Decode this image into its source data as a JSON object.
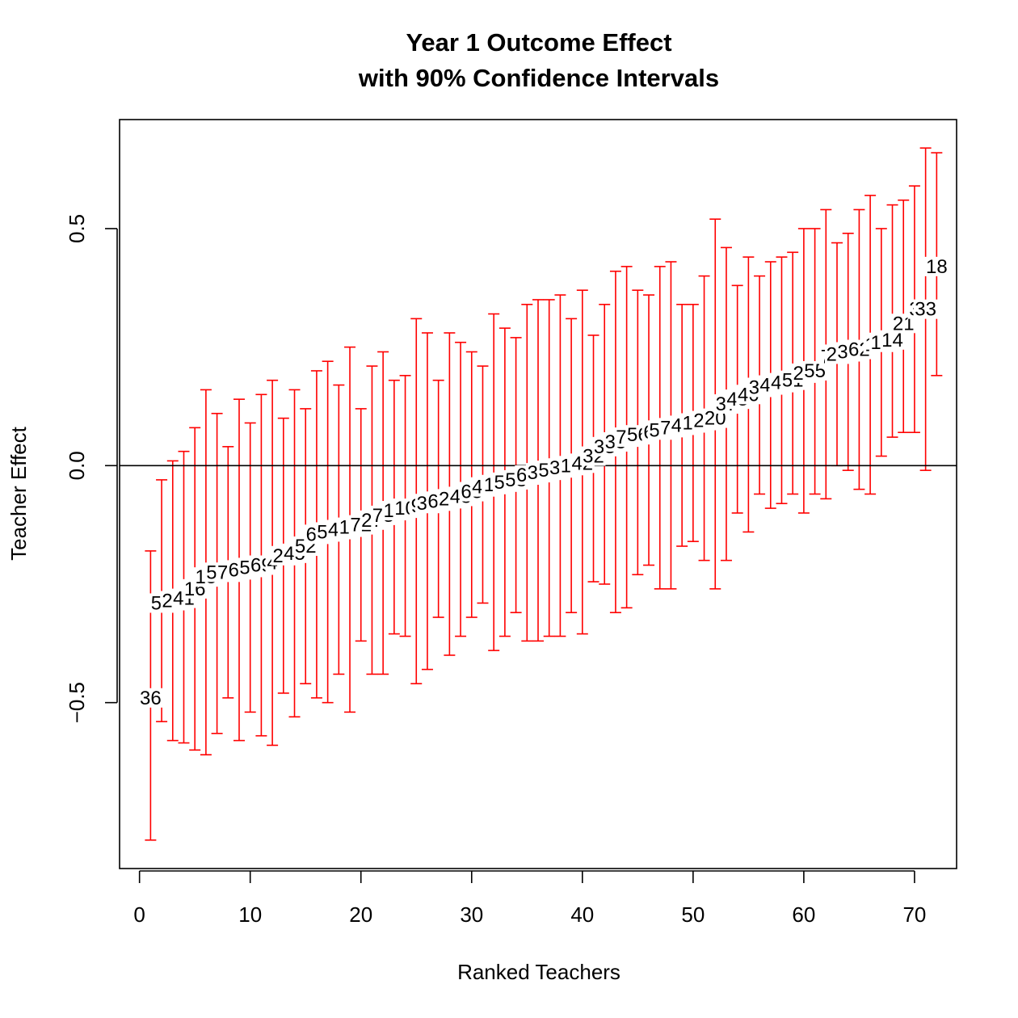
{
  "chart_data": {
    "type": "errorbar",
    "title": "Year 1 Outcome Effect",
    "subtitle": "with 90% Confidence Intervals",
    "xlabel": "Ranked Teachers",
    "ylabel": "Teacher Effect",
    "xlim": [
      -1.8,
      73.8
    ],
    "ylim": [
      -0.85,
      0.73
    ],
    "x_ticks": [
      0,
      10,
      20,
      30,
      40,
      50,
      60,
      70
    ],
    "y_ticks": [
      -0.5,
      0.0,
      0.5
    ],
    "y_tick_labels": [
      "−0.5",
      "0.0",
      "0.5"
    ],
    "reference_line": 0,
    "bar_color": "#ff0000",
    "points": [
      {
        "rank": 1,
        "id": "36",
        "estimate": -0.49,
        "lower": -0.79,
        "upper": -0.18
      },
      {
        "rank": 2,
        "id": "57",
        "estimate": -0.29,
        "lower": -0.54,
        "upper": -0.03
      },
      {
        "rank": 3,
        "id": "24",
        "estimate": -0.285,
        "lower": -0.58,
        "upper": 0.01
      },
      {
        "rank": 4,
        "id": "41",
        "estimate": -0.28,
        "lower": -0.585,
        "upper": 0.03
      },
      {
        "rank": 5,
        "id": "16",
        "estimate": -0.26,
        "lower": -0.6,
        "upper": 0.08
      },
      {
        "rank": 6,
        "id": "15",
        "estimate": -0.235,
        "lower": -0.61,
        "upper": 0.16
      },
      {
        "rank": 7,
        "id": "57",
        "estimate": -0.225,
        "lower": -0.565,
        "upper": 0.11
      },
      {
        "rank": 8,
        "id": "76",
        "estimate": -0.225,
        "lower": -0.49,
        "upper": 0.04
      },
      {
        "rank": 9,
        "id": "60",
        "estimate": -0.22,
        "lower": -0.58,
        "upper": 0.14
      },
      {
        "rank": 10,
        "id": "54",
        "estimate": -0.215,
        "lower": -0.52,
        "upper": 0.09
      },
      {
        "rank": 11,
        "id": "69",
        "estimate": -0.21,
        "lower": -0.57,
        "upper": 0.15
      },
      {
        "rank": 12,
        "id": "4",
        "estimate": -0.205,
        "lower": -0.59,
        "upper": 0.18
      },
      {
        "rank": 13,
        "id": "20",
        "estimate": -0.19,
        "lower": -0.48,
        "upper": 0.1
      },
      {
        "rank": 14,
        "id": "45",
        "estimate": -0.185,
        "lower": -0.53,
        "upper": 0.16
      },
      {
        "rank": 15,
        "id": "52",
        "estimate": -0.17,
        "lower": -0.46,
        "upper": 0.12
      },
      {
        "rank": 16,
        "id": "65",
        "estimate": -0.145,
        "lower": -0.49,
        "upper": 0.2
      },
      {
        "rank": 17,
        "id": "53",
        "estimate": -0.14,
        "lower": -0.5,
        "upper": 0.22
      },
      {
        "rank": 18,
        "id": "47",
        "estimate": -0.135,
        "lower": -0.44,
        "upper": 0.17
      },
      {
        "rank": 19,
        "id": "12",
        "estimate": -0.13,
        "lower": -0.52,
        "upper": 0.25
      },
      {
        "rank": 20,
        "id": "72",
        "estimate": -0.125,
        "lower": -0.37,
        "upper": 0.12
      },
      {
        "rank": 21,
        "id": "27",
        "estimate": -0.115,
        "lower": -0.44,
        "upper": 0.21
      },
      {
        "rank": 22,
        "id": "73",
        "estimate": -0.105,
        "lower": -0.44,
        "upper": 0.24
      },
      {
        "rank": 23,
        "id": "13",
        "estimate": -0.095,
        "lower": -0.355,
        "upper": 0.18
      },
      {
        "rank": 24,
        "id": "10",
        "estimate": -0.09,
        "lower": -0.36,
        "upper": 0.19
      },
      {
        "rank": 25,
        "id": "9",
        "estimate": -0.085,
        "lower": -0.46,
        "upper": 0.31
      },
      {
        "rank": 26,
        "id": "37",
        "estimate": -0.08,
        "lower": -0.43,
        "upper": 0.28
      },
      {
        "rank": 27,
        "id": "62",
        "estimate": -0.075,
        "lower": -0.32,
        "upper": 0.18
      },
      {
        "rank": 28,
        "id": "29",
        "estimate": -0.07,
        "lower": -0.4,
        "upper": 0.28
      },
      {
        "rank": 29,
        "id": "48",
        "estimate": -0.065,
        "lower": -0.36,
        "upper": 0.26
      },
      {
        "rank": 30,
        "id": "63",
        "estimate": -0.055,
        "lower": -0.32,
        "upper": 0.24
      },
      {
        "rank": 31,
        "id": "44",
        "estimate": -0.045,
        "lower": -0.29,
        "upper": 0.21
      },
      {
        "rank": 32,
        "id": "11",
        "estimate": -0.04,
        "lower": -0.39,
        "upper": 0.32
      },
      {
        "rank": 33,
        "id": "56",
        "estimate": -0.035,
        "lower": -0.36,
        "upper": 0.29
      },
      {
        "rank": 34,
        "id": "58",
        "estimate": -0.03,
        "lower": -0.31,
        "upper": 0.27
      },
      {
        "rank": 35,
        "id": "67",
        "estimate": -0.02,
        "lower": -0.37,
        "upper": 0.34
      },
      {
        "rank": 36,
        "id": "34",
        "estimate": -0.015,
        "lower": -0.37,
        "upper": 0.35
      },
      {
        "rank": 37,
        "id": "54",
        "estimate": -0.01,
        "lower": -0.36,
        "upper": 0.35
      },
      {
        "rank": 38,
        "id": "31",
        "estimate": -0.005,
        "lower": -0.36,
        "upper": 0.36
      },
      {
        "rank": 39,
        "id": "18",
        "estimate": 0.0,
        "lower": -0.31,
        "upper": 0.31
      },
      {
        "rank": 40,
        "id": "42",
        "estimate": 0.005,
        "lower": -0.355,
        "upper": 0.37
      },
      {
        "rank": 41,
        "id": "32",
        "estimate": 0.02,
        "lower": -0.245,
        "upper": 0.275
      },
      {
        "rank": 42,
        "id": "33",
        "estimate": 0.04,
        "lower": -0.25,
        "upper": 0.34
      },
      {
        "rank": 43,
        "id": "35",
        "estimate": 0.05,
        "lower": -0.31,
        "upper": 0.41
      },
      {
        "rank": 44,
        "id": "70",
        "estimate": 0.06,
        "lower": -0.3,
        "upper": 0.42
      },
      {
        "rank": 45,
        "id": "56",
        "estimate": 0.065,
        "lower": -0.23,
        "upper": 0.37
      },
      {
        "rank": 46,
        "id": "6",
        "estimate": 0.07,
        "lower": -0.21,
        "upper": 0.36
      },
      {
        "rank": 47,
        "id": "59",
        "estimate": 0.075,
        "lower": -0.26,
        "upper": 0.42
      },
      {
        "rank": 48,
        "id": "70",
        "estimate": 0.08,
        "lower": -0.26,
        "upper": 0.43
      },
      {
        "rank": 49,
        "id": "45",
        "estimate": 0.085,
        "lower": -0.17,
        "upper": 0.34
      },
      {
        "rank": 50,
        "id": "17",
        "estimate": 0.09,
        "lower": -0.16,
        "upper": 0.34
      },
      {
        "rank": 51,
        "id": "26",
        "estimate": 0.095,
        "lower": -0.2,
        "upper": 0.4
      },
      {
        "rank": 52,
        "id": "20",
        "estimate": 0.1,
        "lower": -0.26,
        "upper": 0.52
      },
      {
        "rank": 53,
        "id": "37",
        "estimate": 0.13,
        "lower": -0.2,
        "upper": 0.46
      },
      {
        "rank": 54,
        "id": "43",
        "estimate": 0.14,
        "lower": -0.1,
        "upper": 0.38
      },
      {
        "rank": 55,
        "id": "40",
        "estimate": 0.15,
        "lower": -0.14,
        "upper": 0.44
      },
      {
        "rank": 56,
        "id": "31",
        "estimate": 0.165,
        "lower": -0.06,
        "upper": 0.4
      },
      {
        "rank": 57,
        "id": "42",
        "estimate": 0.17,
        "lower": -0.09,
        "upper": 0.43
      },
      {
        "rank": 58,
        "id": "45",
        "estimate": 0.175,
        "lower": -0.08,
        "upper": 0.44
      },
      {
        "rank": 59,
        "id": "51",
        "estimate": 0.18,
        "lower": -0.06,
        "upper": 0.45
      },
      {
        "rank": 60,
        "id": "29",
        "estimate": 0.195,
        "lower": -0.1,
        "upper": 0.5
      },
      {
        "rank": 61,
        "id": "55",
        "estimate": 0.2,
        "lower": -0.06,
        "upper": 0.5
      },
      {
        "rank": 62,
        "id": "7",
        "estimate": 0.23,
        "lower": -0.07,
        "upper": 0.54
      },
      {
        "rank": 63,
        "id": "28",
        "estimate": 0.235,
        "lower": 0.0,
        "upper": 0.47
      },
      {
        "rank": 64,
        "id": "36",
        "estimate": 0.24,
        "lower": -0.01,
        "upper": 0.49
      },
      {
        "rank": 65,
        "id": "62",
        "estimate": 0.245,
        "lower": -0.05,
        "upper": 0.54
      },
      {
        "rank": 66,
        "id": "1",
        "estimate": 0.255,
        "lower": -0.06,
        "upper": 0.57
      },
      {
        "rank": 67,
        "id": "12",
        "estimate": 0.26,
        "lower": 0.02,
        "upper": 0.5
      },
      {
        "rank": 68,
        "id": "14",
        "estimate": 0.265,
        "lower": 0.06,
        "upper": 0.55
      },
      {
        "rank": 69,
        "id": "21",
        "estimate": 0.3,
        "lower": 0.07,
        "upper": 0.56
      },
      {
        "rank": 70,
        "id": "3",
        "estimate": 0.33,
        "lower": 0.07,
        "upper": 0.59
      },
      {
        "rank": 71,
        "id": "33",
        "estimate": 0.33,
        "lower": -0.01,
        "upper": 0.67
      },
      {
        "rank": 72,
        "id": "18",
        "estimate": 0.42,
        "lower": 0.19,
        "upper": 0.66
      }
    ]
  }
}
